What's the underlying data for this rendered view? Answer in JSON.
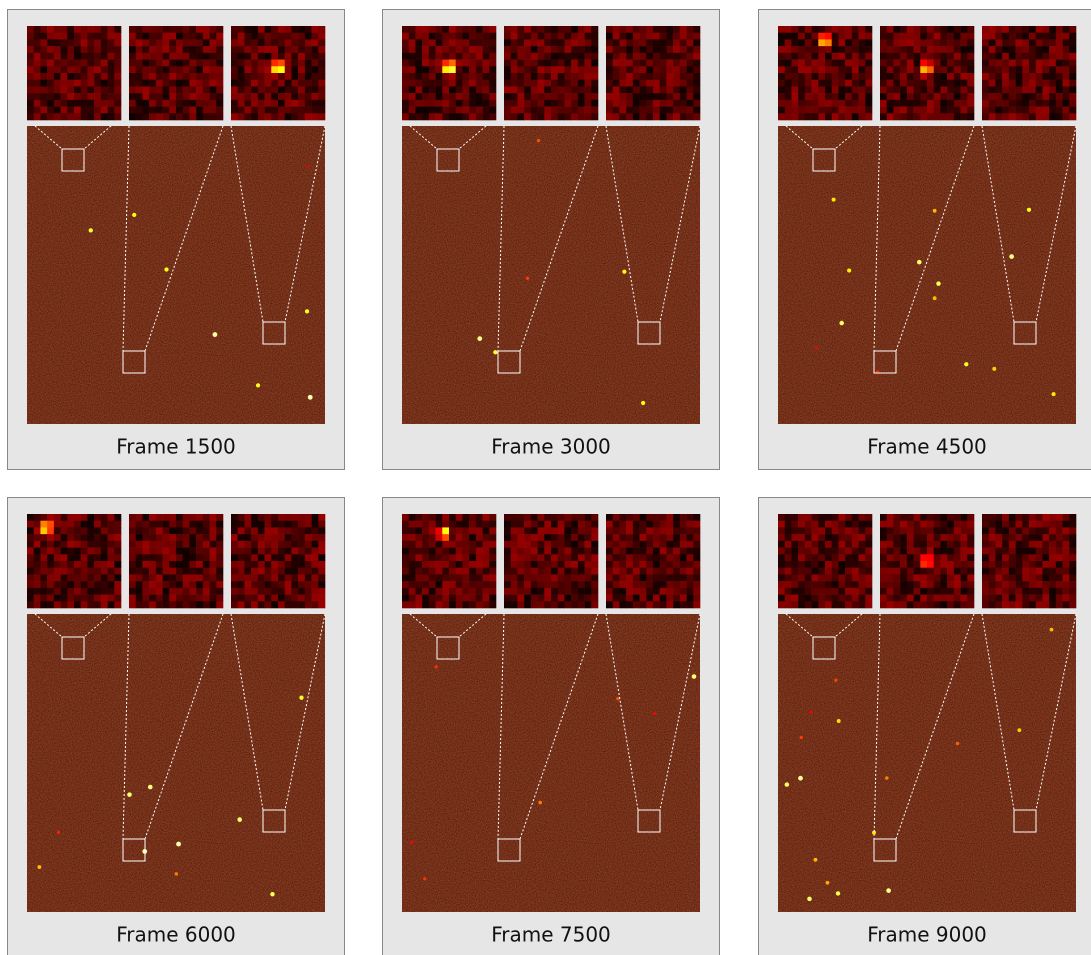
{
  "panels": [
    {
      "label": "Frame 1500"
    },
    {
      "label": "Frame 3000"
    },
    {
      "label": "Frame 4500"
    },
    {
      "label": "Frame 6000"
    },
    {
      "label": "Frame 7500"
    },
    {
      "label": "Frame 9000"
    }
  ]
}
